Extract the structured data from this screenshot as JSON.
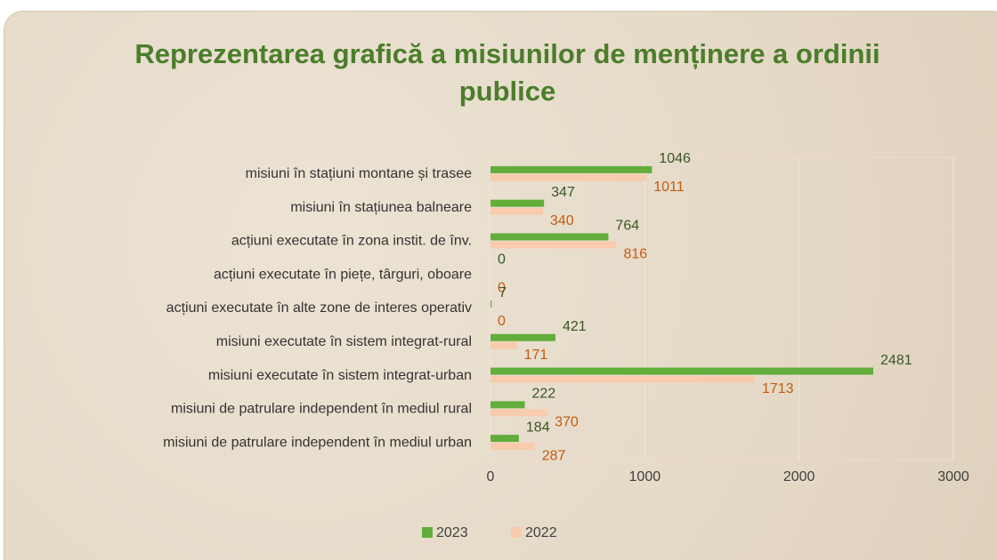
{
  "chart_data": {
    "type": "barh",
    "title": "Reprezentarea grafică a misiunilor de menținere a ordinii publice",
    "categories": [
      "misiuni în stațiuni montane și trasee",
      "misiuni în stațiunea balneare",
      "acțiuni executate în zona instit. de înv.",
      "acțiuni executate în piețe, târguri, oboare",
      "acțiuni executate în alte zone de interes operativ",
      "misiuni executate în sistem integrat-rural",
      "misiuni executate în sistem integrat-urban",
      "misiuni de patrulare independent în mediul rural",
      "misiuni de patrulare independent în mediul urban"
    ],
    "series": [
      {
        "name": "2023",
        "color": "#62ad3c",
        "values": [
          1046,
          347,
          764,
          0,
          7,
          421,
          2481,
          222,
          184
        ]
      },
      {
        "name": "2022",
        "color": "#f8cbad",
        "values": [
          1011,
          340,
          816,
          0,
          0,
          171,
          1713,
          370,
          287
        ]
      }
    ],
    "xlim": [
      0,
      3000
    ],
    "xticks": [
      0,
      1000,
      2000,
      3000
    ],
    "grid": true,
    "legend": "bottom"
  }
}
